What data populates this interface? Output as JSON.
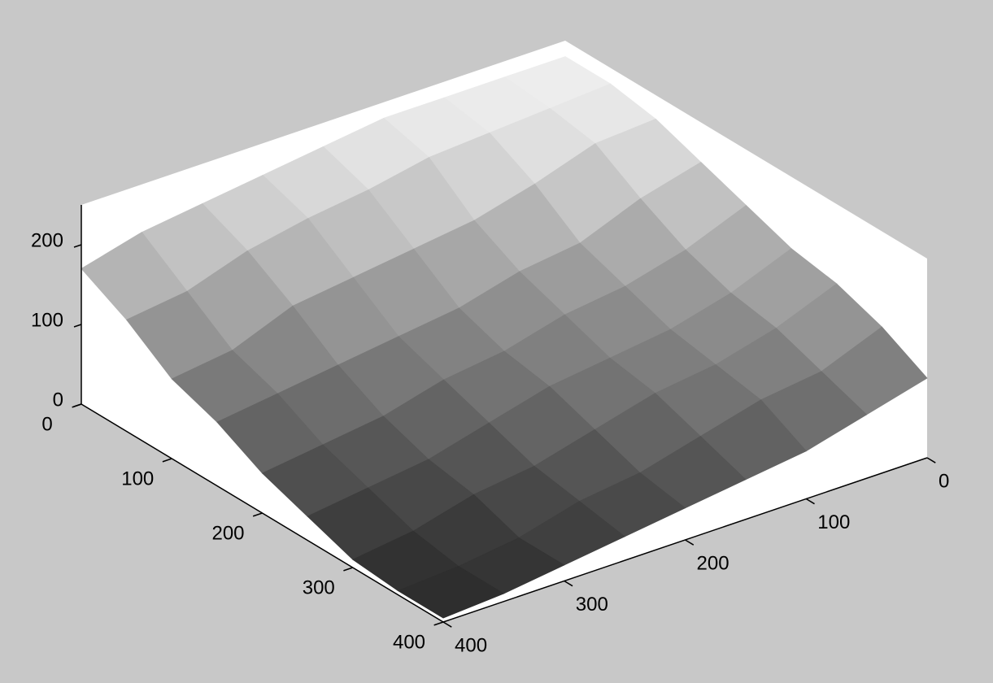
{
  "chart_data": {
    "type": "surface",
    "x": [
      0,
      50,
      100,
      150,
      200,
      250,
      300,
      350,
      400
    ],
    "y": [
      0,
      50,
      100,
      150,
      200,
      250,
      300,
      350,
      400
    ],
    "z": [
      [
        230,
        230,
        230,
        230,
        220,
        210,
        200,
        190,
        170
      ],
      [
        230,
        225,
        220,
        215,
        200,
        190,
        175,
        150,
        140
      ],
      [
        220,
        215,
        190,
        170,
        160,
        150,
        140,
        110,
        100
      ],
      [
        200,
        180,
        150,
        140,
        120,
        110,
        100,
        90,
        80
      ],
      [
        180,
        150,
        130,
        120,
        100,
        90,
        70,
        60,
        50
      ],
      [
        160,
        130,
        110,
        100,
        90,
        70,
        50,
        40,
        30
      ],
      [
        150,
        120,
        100,
        90,
        70,
        50,
        40,
        20,
        10
      ],
      [
        130,
        100,
        90,
        70,
        50,
        40,
        20,
        10,
        5
      ],
      [
        100,
        80,
        60,
        50,
        40,
        30,
        20,
        10,
        5
      ]
    ],
    "xlim": [
      0,
      400
    ],
    "ylim": [
      0,
      400
    ],
    "zlim": [
      0,
      250
    ],
    "xticks": [
      0,
      100,
      200,
      300,
      400
    ],
    "yticks": [
      0,
      100,
      200,
      300,
      400
    ],
    "zticks": [
      0,
      100,
      200
    ],
    "colormap": "gray"
  }
}
